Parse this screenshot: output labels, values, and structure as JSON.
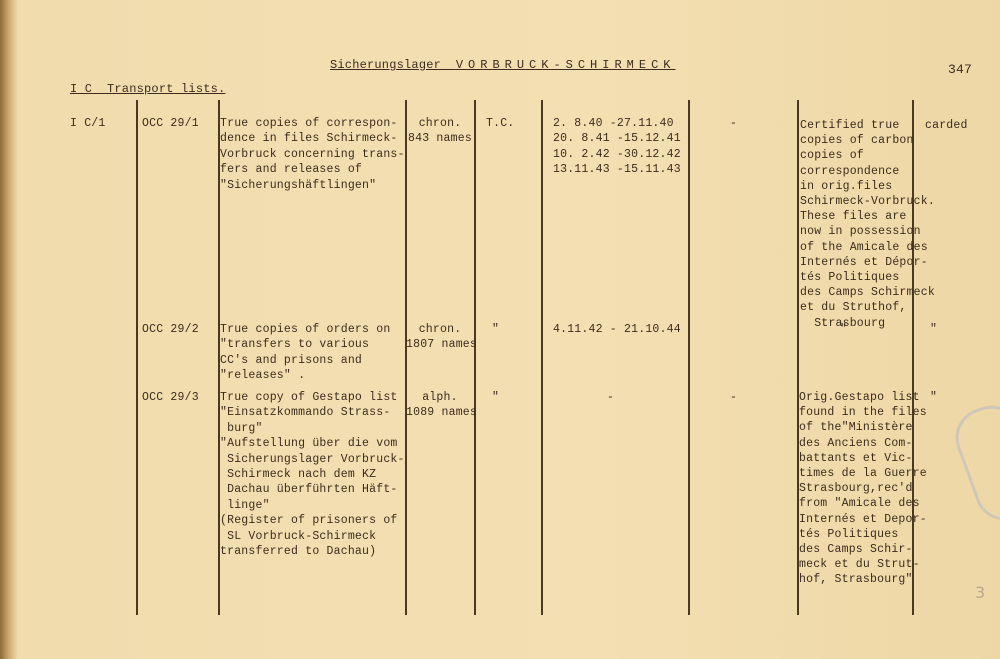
{
  "header": {
    "title_prefix": "Sicherungslager",
    "title_name": "VORBRUCK-SCHIRMECK",
    "page_number": "347",
    "section": "I C  Transport lists."
  },
  "rows": [
    {
      "ref": "I C/1",
      "occ": "OCC 29/1",
      "description": "True copies of correspon-\ndence in files Schirmeck-\nVorbruck concerning trans-\nfers and releases of\n\"Sicherungshäftlingen\"",
      "arrangement": "chron.\n843 names",
      "type": "T.C.",
      "dates": "2. 8.40 -27.11.40\n20. 8.41 -15.12.41\n10. 2.42 -30.12.42\n13.11.43 -15.11.43",
      "col7": "-",
      "remarks": "Certified true\ncopies of carbon\ncopies of\ncorrespondence\nin orig.files\nSchirmeck-Vorbruck.\nThese files are\nnow in possession\nof the Amicale des\nInternés et Dépor-\ntés Politiques\ndes Camps Schirmeck\net du Struthof,\n  Strasbourg",
      "status": "carded"
    },
    {
      "ref": "",
      "occ": "OCC 29/2",
      "description": "True copies of orders on\n\"transfers to various\nCC's and prisons and\n\"releases\" .",
      "arrangement": "chron.\n1807 names",
      "type": "\"",
      "dates": "4.11.42 - 21.10.44",
      "col7": "",
      "remarks": "\"",
      "status": "\""
    },
    {
      "ref": "",
      "occ": "OCC 29/3",
      "description": "True copy of Gestapo list\n\"Einsatzkommando Strass-\n burg\"\n\"Aufstellung über die vom\n Sicherungslager Vorbruck-\n Schirmeck nach dem KZ\n Dachau überführten Häft-\n linge\"\n(Register of prisoners of\n SL Vorbruck-Schirmeck\ntransferred to Dachau)",
      "arrangement": "alph.\n1089 names",
      "type": "\"",
      "dates": "-",
      "col7": "-",
      "remarks": "Orig.Gestapo list\nfound in the files\nof the\"Ministère\ndes Anciens Com-\nbattants et Vic-\ntimes de la Guerre\nStrasbourg,rec'd\nfrom \"Amicale des\nInternés et Depor-\ntés Politiques\ndes Camps Schir-\nmeck et du Strut-\nhof, Strasbourg\"",
      "status": "\""
    }
  ],
  "margin_note": "3"
}
